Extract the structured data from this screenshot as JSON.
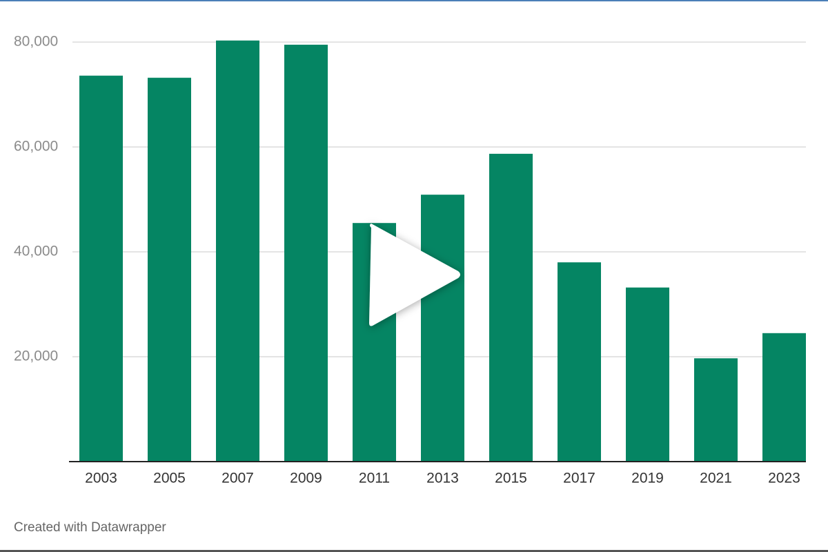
{
  "chart_data": {
    "type": "bar",
    "categories": [
      "2003",
      "2005",
      "2007",
      "2009",
      "2011",
      "2013",
      "2015",
      "2017",
      "2019",
      "2021",
      "2023"
    ],
    "values": [
      73600,
      73200,
      80300,
      79500,
      45500,
      50900,
      58700,
      38000,
      33200,
      19700,
      24500
    ],
    "color": "#058563",
    "ylim": [
      0,
      85000
    ],
    "yticks": [
      {
        "value": 20000,
        "label": "20,000"
      },
      {
        "value": 40000,
        "label": "40,000"
      },
      {
        "value": 60000,
        "label": "60,000"
      },
      {
        "value": 80000,
        "label": "80,000"
      }
    ],
    "grid": true,
    "footer": "Created with Datawrapper"
  }
}
